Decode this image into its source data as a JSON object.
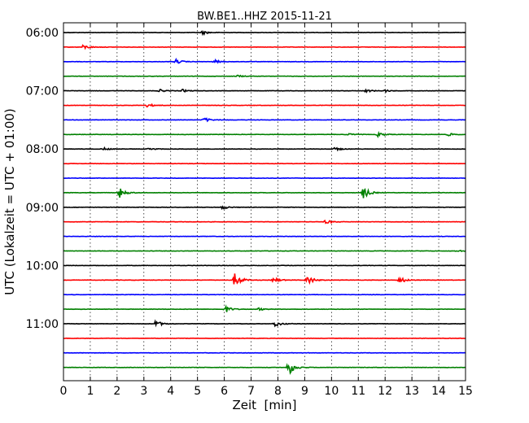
{
  "chart_data": {
    "type": "line",
    "title": "BW.BE1..HHZ 2015-11-21",
    "xlabel": "Zeit  [min]",
    "ylabel": "UTC (Lokalzeit = UTC + 01:00)",
    "xlim": [
      0,
      15
    ],
    "x_ticks": [
      "0",
      "1",
      "2",
      "3",
      "4",
      "5",
      "6",
      "7",
      "8",
      "9",
      "10",
      "11",
      "12",
      "13",
      "14",
      "15"
    ],
    "y_ticks": [
      "06:00",
      "07:00",
      "08:00",
      "09:00",
      "10:00",
      "11:00"
    ],
    "grid": "vertical-dotted",
    "trace_colors": [
      "#000000",
      "#ff0000",
      "#0000ff",
      "#008000"
    ],
    "traces": [
      {
        "start": "06:00",
        "events": [
          [
            5.2,
            0.5
          ]
        ]
      },
      {
        "start": "06:15",
        "events": [
          [
            0.75,
            0.6
          ]
        ]
      },
      {
        "start": "06:30",
        "events": [
          [
            4.2,
            0.6
          ],
          [
            5.65,
            0.45
          ]
        ]
      },
      {
        "start": "06:45",
        "events": [
          [
            6.5,
            0.3
          ]
        ]
      },
      {
        "start": "07:00",
        "events": [
          [
            3.6,
            0.35
          ],
          [
            4.45,
            0.35
          ],
          [
            11.3,
            0.4
          ],
          [
            12.0,
            0.3
          ]
        ]
      },
      {
        "start": "07:15",
        "events": [
          [
            3.15,
            0.5
          ]
        ]
      },
      {
        "start": "07:30",
        "events": [
          [
            5.25,
            0.6
          ]
        ]
      },
      {
        "start": "07:45",
        "events": [
          [
            10.6,
            0.3
          ],
          [
            11.75,
            0.6
          ],
          [
            14.35,
            0.4
          ]
        ]
      },
      {
        "start": "08:00",
        "events": [
          [
            1.5,
            0.35
          ],
          [
            3.2,
            0.35
          ],
          [
            10.15,
            0.45
          ]
        ]
      },
      {
        "start": "08:15",
        "events": []
      },
      {
        "start": "08:30",
        "events": []
      },
      {
        "start": "08:45",
        "events": [
          [
            2.1,
            1.4
          ],
          [
            11.2,
            1.6
          ]
        ]
      },
      {
        "start": "09:00",
        "events": [
          [
            5.95,
            0.5
          ]
        ]
      },
      {
        "start": "09:15",
        "events": [
          [
            9.8,
            0.6
          ]
        ]
      },
      {
        "start": "09:30",
        "events": []
      },
      {
        "start": "09:45",
        "events": [
          [
            14.7,
            0.3
          ]
        ]
      },
      {
        "start": "10:00",
        "events": []
      },
      {
        "start": "10:15",
        "events": [
          [
            6.4,
            2.0
          ],
          [
            7.85,
            0.7
          ],
          [
            9.1,
            1.4
          ],
          [
            12.55,
            0.9
          ]
        ]
      },
      {
        "start": "10:30",
        "events": []
      },
      {
        "start": "10:45",
        "events": [
          [
            6.05,
            0.9
          ],
          [
            7.3,
            0.35
          ]
        ]
      },
      {
        "start": "11:00",
        "events": [
          [
            3.45,
            0.9
          ],
          [
            7.9,
            0.8
          ]
        ]
      },
      {
        "start": "11:15",
        "events": []
      },
      {
        "start": "11:30",
        "events": []
      },
      {
        "start": "11:45",
        "events": [
          [
            8.4,
            2.2
          ]
        ]
      }
    ]
  }
}
